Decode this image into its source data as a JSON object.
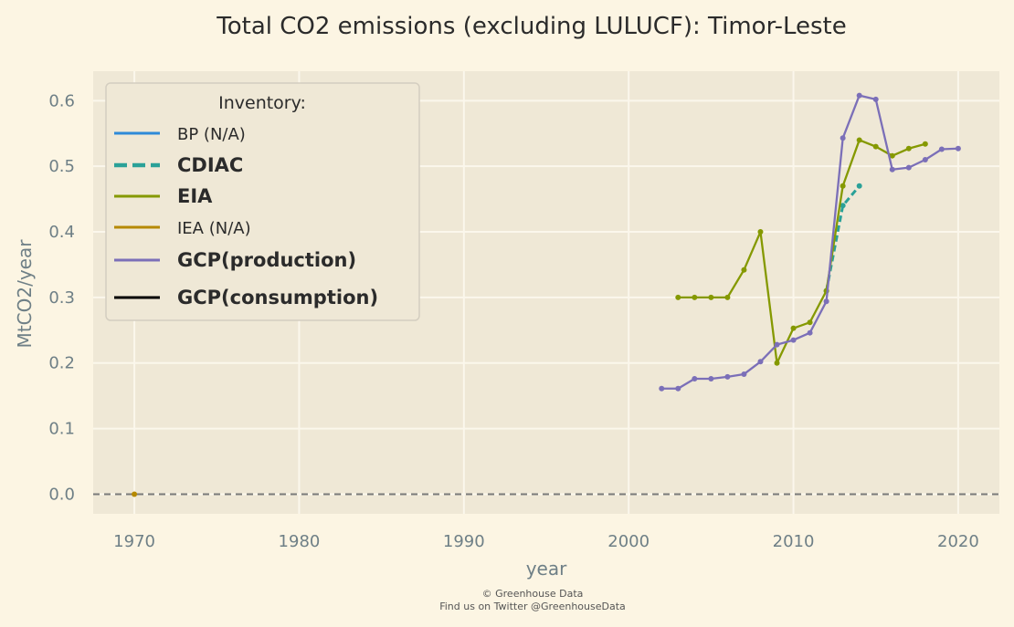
{
  "chart_data": {
    "type": "line",
    "title": "Total CO2 emissions (excluding LULUCF): Timor-Leste",
    "xlabel": "year",
    "ylabel": "MtCO2/year",
    "xlim": [
      1967.5,
      2022.5
    ],
    "ylim": [
      -0.03,
      0.645
    ],
    "xticks": [
      1970,
      1980,
      1990,
      2000,
      2010,
      2020
    ],
    "yticks": [
      0.0,
      0.1,
      0.2,
      0.3,
      0.4,
      0.5,
      0.6
    ],
    "ytick_labels": [
      "0.0",
      "0.1",
      "0.2",
      "0.3",
      "0.4",
      "0.5",
      "0.6"
    ],
    "grid": true,
    "zero_line": true,
    "legend": {
      "title": "Inventory:",
      "placement": "top-left",
      "entries": [
        {
          "label": "BP (N/A)",
          "color": "#2e8ad8",
          "style": "solid",
          "bold": false
        },
        {
          "label": "CDIAC",
          "color": "#2aa198",
          "style": "dashed",
          "bold": true
        },
        {
          "label": "EIA",
          "color": "#859900",
          "style": "solid",
          "bold": true
        },
        {
          "label": "IEA (N/A)",
          "color": "#b58900",
          "style": "solid",
          "bold": false
        },
        {
          "label": "GCP(production)",
          "color": "#7b6fb8",
          "style": "solid",
          "bold": true
        },
        {
          "label": "GCP(consumption)",
          "color": "#000000",
          "style": "solid",
          "bold": true
        }
      ]
    },
    "series": [
      {
        "name": "CDIAC",
        "color": "#2aa198",
        "style": "dashed",
        "x": [
          2012,
          2013,
          2014
        ],
        "y": [
          0.31,
          0.44,
          0.47
        ]
      },
      {
        "name": "EIA",
        "color": "#859900",
        "style": "solid",
        "x": [
          2003,
          2004,
          2005,
          2006,
          2007,
          2008,
          2009,
          2010,
          2011,
          2012,
          2013,
          2014,
          2015,
          2016,
          2017,
          2018
        ],
        "y": [
          0.3,
          0.3,
          0.3,
          0.3,
          0.342,
          0.4,
          0.2,
          0.253,
          0.262,
          0.31,
          0.47,
          0.54,
          0.53,
          0.516,
          0.527,
          0.534
        ]
      },
      {
        "name": "IEA (N/A)",
        "color": "#b58900",
        "style": "solid",
        "x": [
          1970
        ],
        "y": [
          0.0
        ]
      },
      {
        "name": "GCP(production)",
        "color": "#7b6fb8",
        "style": "solid",
        "x": [
          2002,
          2003,
          2004,
          2005,
          2006,
          2007,
          2008,
          2009,
          2010,
          2011,
          2012,
          2013,
          2014,
          2015,
          2016,
          2017,
          2018,
          2019,
          2020
        ],
        "y": [
          0.161,
          0.161,
          0.176,
          0.176,
          0.179,
          0.183,
          0.202,
          0.228,
          0.235,
          0.246,
          0.294,
          0.543,
          0.608,
          0.602,
          0.495,
          0.498,
          0.51,
          0.526,
          0.527
        ]
      }
    ]
  },
  "footer": {
    "line1": "© Greenhouse Data",
    "line2": "Find us on Twitter @GreenhouseData"
  }
}
